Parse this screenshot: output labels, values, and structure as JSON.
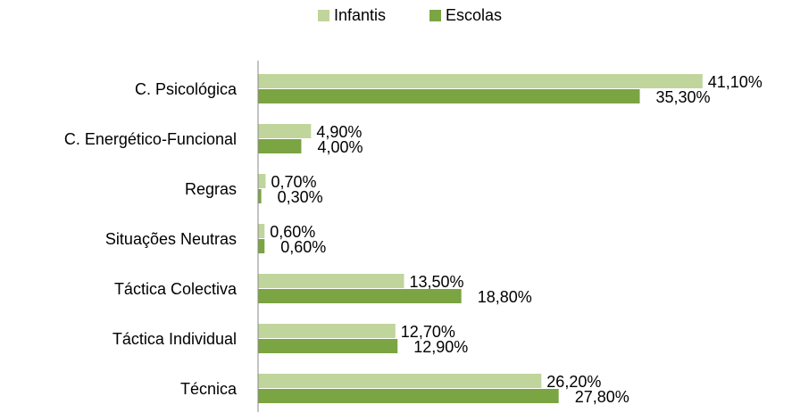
{
  "chart_data": {
    "type": "barh",
    "categories": [
      "C. Psicológica",
      "C. Energético-Funcional",
      "Regras",
      "Situações Neutras",
      "Táctica Colectiva",
      "Táctica Individual",
      "Técnica"
    ],
    "series": [
      {
        "name": "Infantis",
        "color": "#c0d59c",
        "values": [
          41.1,
          4.9,
          0.7,
          0.6,
          13.5,
          12.7,
          26.2
        ],
        "value_labels": [
          "41,10%",
          "4,90%",
          "0,70%",
          "0,60%",
          "13,50%",
          "12,70%",
          "26,20%"
        ]
      },
      {
        "name": "Escolas",
        "color": "#7ba442",
        "values": [
          35.3,
          4.0,
          0.3,
          0.6,
          18.8,
          12.9,
          27.8
        ],
        "value_labels": [
          "35,30%",
          "4,00%",
          "0,30%",
          "0,60%",
          "18,80%",
          "12,90%",
          "27,80%"
        ]
      }
    ],
    "xlim": [
      0,
      45
    ],
    "legend": "top"
  }
}
